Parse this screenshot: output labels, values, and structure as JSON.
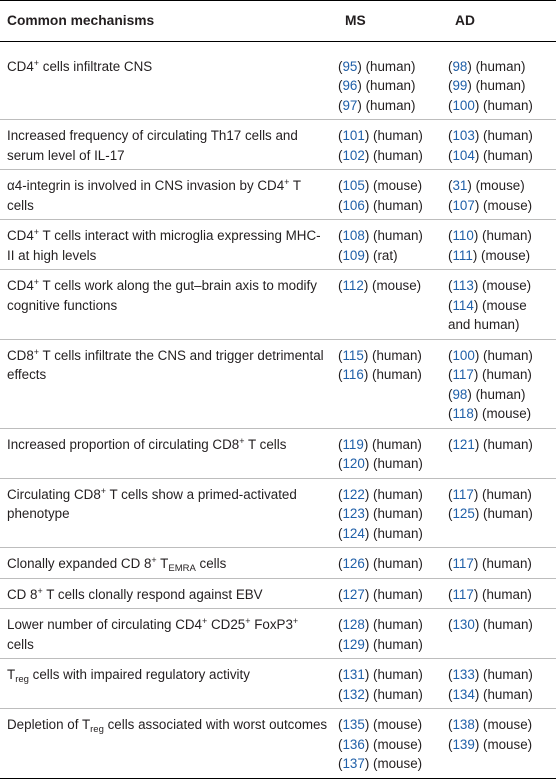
{
  "header": {
    "mechanisms": "Common mechanisms",
    "ms": "MS",
    "ad": "AD"
  },
  "rows": [
    {
      "mechanism": [
        {
          "t": "CD4"
        },
        {
          "t": "+",
          "sup": true
        },
        {
          "t": " cells infiltrate CNS"
        }
      ],
      "ms": [
        {
          "n": "95",
          "s": "(human)"
        },
        {
          "n": "96",
          "s": "(human)"
        },
        {
          "n": "97",
          "s": "(human)"
        }
      ],
      "ad": [
        {
          "n": "98",
          "s": "(human)"
        },
        {
          "n": "99",
          "s": "(human)"
        },
        {
          "n": "100",
          "s": "(human)"
        }
      ]
    },
    {
      "mechanism": [
        {
          "t": "Increased frequency of circulating Th17 cells and serum level of IL-17"
        }
      ],
      "ms": [
        {
          "n": "101",
          "s": "(human)"
        },
        {
          "n": "102",
          "s": "(human)"
        }
      ],
      "ad": [
        {
          "n": "103",
          "s": "(human)"
        },
        {
          "n": "104",
          "s": "(human)"
        }
      ]
    },
    {
      "mechanism": [
        {
          "t": "α4-integrin is involved in CNS invasion by CD4"
        },
        {
          "t": "+",
          "sup": true
        },
        {
          "t": " T cells"
        }
      ],
      "ms": [
        {
          "n": "105",
          "s": "(mouse)"
        },
        {
          "n": "106",
          "s": "(human)"
        }
      ],
      "ad": [
        {
          "n": "31",
          "s": "(mouse)"
        },
        {
          "n": "107",
          "s": "(mouse)"
        }
      ]
    },
    {
      "mechanism": [
        {
          "t": "CD4"
        },
        {
          "t": "+",
          "sup": true
        },
        {
          "t": " T cells interact with microglia expressing MHC-II at high levels"
        }
      ],
      "ms": [
        {
          "n": "108",
          "s": "(human)"
        },
        {
          "n": "109",
          "s": "(rat)"
        }
      ],
      "ad": [
        {
          "n": "110",
          "s": "(human)"
        },
        {
          "n": "111",
          "s": "(mouse)"
        }
      ]
    },
    {
      "mechanism": [
        {
          "t": "CD4"
        },
        {
          "t": "+",
          "sup": true
        },
        {
          "t": " T cells work along the gut–brain axis to modify cognitive functions"
        }
      ],
      "ms": [
        {
          "n": "112",
          "s": "(mouse)"
        }
      ],
      "ad": [
        {
          "n": "113",
          "s": "(mouse)"
        },
        {
          "n": "114",
          "s": "(mouse"
        },
        {
          "n": "",
          "s": "and human)"
        }
      ]
    },
    {
      "mechanism": [
        {
          "t": "CD8"
        },
        {
          "t": "+",
          "sup": true
        },
        {
          "t": " T cells infiltrate the CNS and trigger detrimental effects"
        }
      ],
      "ms": [
        {
          "n": "115",
          "s": "(human)"
        },
        {
          "n": "116",
          "s": "(human)"
        }
      ],
      "ad": [
        {
          "n": "100",
          "s": "(human)"
        },
        {
          "n": "117",
          "s": "(human)"
        },
        {
          "n": "98",
          "s": "(human)"
        },
        {
          "n": "118",
          "s": "(mouse)"
        }
      ]
    },
    {
      "mechanism": [
        {
          "t": "Increased proportion of circulating CD8"
        },
        {
          "t": "+",
          "sup": true
        },
        {
          "t": " T cells"
        }
      ],
      "ms": [
        {
          "n": "119",
          "s": "(human)"
        },
        {
          "n": "120",
          "s": "(human)"
        }
      ],
      "ad": [
        {
          "n": "121",
          "s": "(human)"
        }
      ]
    },
    {
      "mechanism": [
        {
          "t": "Circulating CD8"
        },
        {
          "t": "+",
          "sup": true
        },
        {
          "t": " T cells show a primed-activated phenotype"
        }
      ],
      "ms": [
        {
          "n": "122",
          "s": "(human)"
        },
        {
          "n": "123",
          "s": "(human)"
        },
        {
          "n": "124",
          "s": "(human)"
        }
      ],
      "ad": [
        {
          "n": "117",
          "s": "(human)"
        },
        {
          "n": "125",
          "s": "(human)"
        }
      ]
    },
    {
      "mechanism": [
        {
          "t": "Clonally expanded CD 8"
        },
        {
          "t": "+",
          "sup": true
        },
        {
          "t": " T"
        },
        {
          "t": "EMRA",
          "sub": true
        },
        {
          "t": " cells"
        }
      ],
      "ms": [
        {
          "n": "126",
          "s": "(human)"
        }
      ],
      "ad": [
        {
          "n": "117",
          "s": "(human)"
        }
      ]
    },
    {
      "mechanism": [
        {
          "t": "CD 8"
        },
        {
          "t": "+",
          "sup": true
        },
        {
          "t": " T cells clonally respond against EBV"
        }
      ],
      "ms": [
        {
          "n": "127",
          "s": "(human)"
        }
      ],
      "ad": [
        {
          "n": "117",
          "s": "(human)"
        }
      ]
    },
    {
      "mechanism": [
        {
          "t": "Lower number of circulating CD4"
        },
        {
          "t": "+",
          "sup": true
        },
        {
          "t": " CD25"
        },
        {
          "t": "+",
          "sup": true
        },
        {
          "t": " FoxP3"
        },
        {
          "t": "+",
          "sup": true
        },
        {
          "t": " cells"
        }
      ],
      "ms": [
        {
          "n": "128",
          "s": "(human)"
        },
        {
          "n": "129",
          "s": "(human)"
        }
      ],
      "ad": [
        {
          "n": "130",
          "s": "(human)"
        }
      ]
    },
    {
      "mechanism": [
        {
          "t": "T"
        },
        {
          "t": "reg",
          "sub": true
        },
        {
          "t": " cells with impaired regulatory activity"
        }
      ],
      "ms": [
        {
          "n": "131",
          "s": "(human)"
        },
        {
          "n": "132",
          "s": "(human)"
        }
      ],
      "ad": [
        {
          "n": "133",
          "s": "(human)"
        },
        {
          "n": "134",
          "s": "(human)"
        }
      ]
    },
    {
      "mechanism": [
        {
          "t": "Depletion of T"
        },
        {
          "t": "reg",
          "sub": true
        },
        {
          "t": " cells associated with worst outcomes"
        }
      ],
      "ms": [
        {
          "n": "135",
          "s": "(mouse)"
        },
        {
          "n": "136",
          "s": "(mouse)"
        },
        {
          "n": "137",
          "s": "(mouse)"
        }
      ],
      "ad": [
        {
          "n": "138",
          "s": "(mouse)"
        },
        {
          "n": "139",
          "s": "(mouse)"
        }
      ]
    }
  ],
  "colors": {
    "text": "#231f20",
    "reference_link": "#1f5fa8",
    "row_divider": "#bdbdbd",
    "rule": "#000000"
  }
}
